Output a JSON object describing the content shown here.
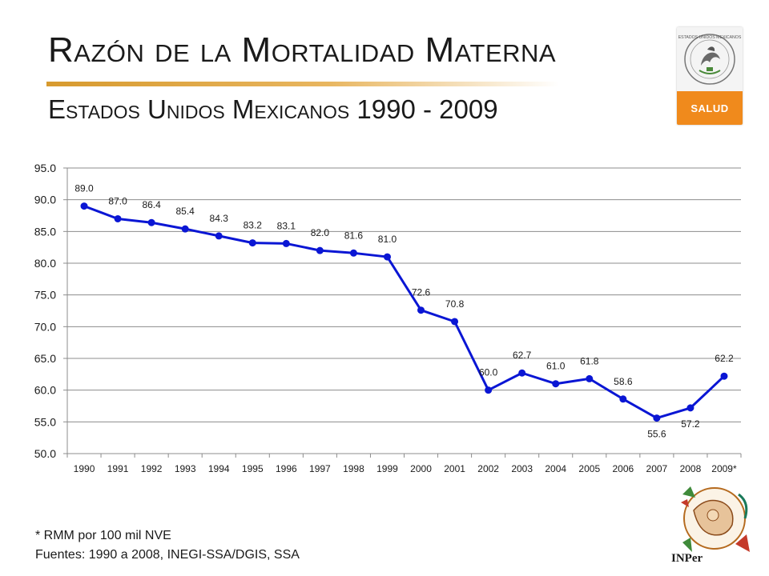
{
  "header": {
    "title": "Razón de la Mortalidad Materna",
    "subtitle": "Estados Unidos Mexicanos 1990 - 2009"
  },
  "logo": {
    "label": "SALUD",
    "seal_text": "ESTADOS UNIDOS MEXICANOS",
    "band_color": "#f08a1c"
  },
  "chart_data": {
    "type": "line",
    "title": "",
    "xlabel": "",
    "ylabel": "",
    "categories": [
      "1990",
      "1991",
      "1992",
      "1993",
      "1994",
      "1995",
      "1996",
      "1997",
      "1998",
      "1999",
      "2000",
      "2001",
      "2002",
      "2003",
      "2004",
      "2005",
      "2006",
      "2007",
      "2008",
      "2009*"
    ],
    "series": [
      {
        "values": [
          89.0,
          87.0,
          86.4,
          85.4,
          84.3,
          83.2,
          83.1,
          82.0,
          81.6,
          81.0,
          72.6,
          70.8,
          60.0,
          62.7,
          61.0,
          61.8,
          58.6,
          55.6,
          57.2,
          62.2
        ],
        "labels": [
          "89.0",
          "87.0",
          "86.4",
          "85.4",
          "84.3",
          "83.2",
          "83.1",
          "82.0",
          "81.6",
          "81.0",
          "72.6",
          "70.8",
          "60.0",
          "62.7",
          "61.0",
          "61.8",
          "58.6",
          "55.6",
          "57.2",
          "62.2"
        ],
        "color": "#0a16d4"
      }
    ],
    "ylim": [
      50,
      95
    ],
    "yticks": [
      "50.0",
      "55.0",
      "60.0",
      "65.0",
      "70.0",
      "75.0",
      "80.0",
      "85.0",
      "90.0",
      "95.0"
    ],
    "grid": true,
    "legend": "none"
  },
  "footer": {
    "note": "* RMM por 100 mil NVE",
    "source": "Fuentes: 1990 a 2008, INEGI-SSA/DGIS, SSA"
  },
  "inper": {
    "label": "INPer"
  }
}
